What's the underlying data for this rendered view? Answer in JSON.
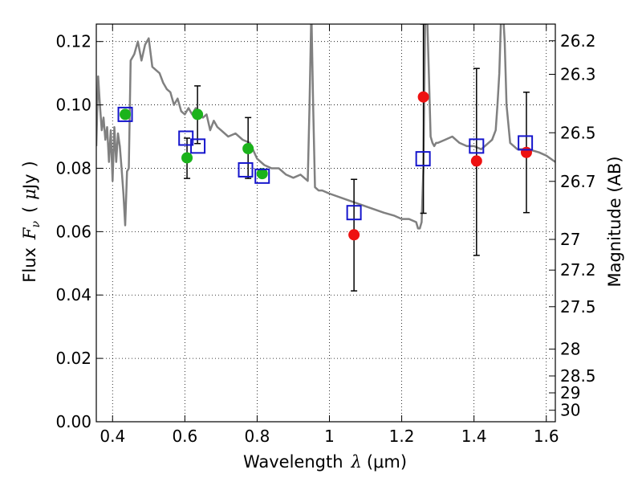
{
  "chart_data": {
    "type": "scatter",
    "title": "",
    "xlabel_parts": {
      "text": "Wavelength",
      "symbol": "λ",
      "unit": "(μm)"
    },
    "ylabel_parts": {
      "text": "Flux",
      "symbol": "F",
      "subscript": "ν",
      "unit_open": "(",
      "unit_mu": "μ",
      "unit": "Jy",
      "unit_close": ")"
    },
    "y2label": "Magnitude (AB)",
    "xlim": [
      0.355,
      1.625
    ],
    "ylim": [
      0.0,
      0.1255
    ],
    "grid": true,
    "x_ticks": [
      0.4,
      0.6,
      0.8,
      1.0,
      1.2,
      1.4,
      1.6
    ],
    "x_tick_labels": [
      "0.4",
      "0.6",
      "0.8",
      "1",
      "1.2",
      "1.4",
      "1.6"
    ],
    "y_ticks": [
      0.0,
      0.02,
      0.04,
      0.06,
      0.08,
      0.1,
      0.12
    ],
    "y_tick_labels": [
      "0.00",
      "0.02",
      "0.04",
      "0.06",
      "0.08",
      "0.10",
      "0.12"
    ],
    "y2_ticks": [
      26.2,
      26.3,
      26.5,
      26.7,
      27,
      27.2,
      27.5,
      28,
      28.5,
      29,
      30
    ],
    "y2_tick_labels": [
      "26.2",
      "26.3",
      "26.5",
      "26.7",
      "27",
      "27.2",
      "27.5",
      "28",
      "28.5",
      "29",
      "30"
    ],
    "colors": {
      "model": "#808080",
      "green": "#1bb31b",
      "red": "#ee1111",
      "squares": "#1515cc",
      "errorbar": "#000000"
    },
    "series": [
      {
        "kind": "line",
        "x": [
          0.355,
          0.36,
          0.365,
          0.37,
          0.375,
          0.38,
          0.385,
          0.39,
          0.395,
          0.4,
          0.405,
          0.41,
          0.415,
          0.42,
          0.425,
          0.43,
          0.435,
          0.44,
          0.445,
          0.45,
          0.46,
          0.47,
          0.48,
          0.49,
          0.5,
          0.51,
          0.52,
          0.53,
          0.54,
          0.55,
          0.56,
          0.57,
          0.58,
          0.59,
          0.6,
          0.61,
          0.62,
          0.63,
          0.64,
          0.65,
          0.66,
          0.67,
          0.68,
          0.69,
          0.7,
          0.72,
          0.74,
          0.76,
          0.78,
          0.8,
          0.82,
          0.84,
          0.86,
          0.88,
          0.9,
          0.92,
          0.94,
          0.945,
          0.95,
          0.955,
          0.96,
          0.97,
          0.98,
          1.0,
          1.05,
          1.1,
          1.15,
          1.18,
          1.2,
          1.22,
          1.24,
          1.245,
          1.25,
          1.255,
          1.26,
          1.265,
          1.27,
          1.275,
          1.28,
          1.285,
          1.29,
          1.295,
          1.3,
          1.32,
          1.34,
          1.36,
          1.38,
          1.4,
          1.42,
          1.44,
          1.45,
          1.46,
          1.465,
          1.47,
          1.475,
          1.48,
          1.485,
          1.49,
          1.5,
          1.52,
          1.55,
          1.58,
          1.6,
          1.625
        ],
        "y": [
          0.087,
          0.109,
          0.1,
          0.092,
          0.096,
          0.089,
          0.093,
          0.082,
          0.092,
          0.076,
          0.093,
          0.082,
          0.091,
          0.087,
          0.08,
          0.072,
          0.062,
          0.079,
          0.08,
          0.114,
          0.116,
          0.12,
          0.114,
          0.119,
          0.121,
          0.112,
          0.111,
          0.11,
          0.107,
          0.105,
          0.104,
          0.1,
          0.102,
          0.098,
          0.097,
          0.099,
          0.097,
          0.099,
          0.097,
          0.096,
          0.097,
          0.092,
          0.095,
          0.093,
          0.092,
          0.09,
          0.091,
          0.089,
          0.088,
          0.083,
          0.081,
          0.08,
          0.08,
          0.078,
          0.077,
          0.078,
          0.076,
          0.1,
          0.13,
          0.1,
          0.074,
          0.073,
          0.073,
          0.072,
          0.07,
          0.068,
          0.066,
          0.065,
          0.064,
          0.064,
          0.063,
          0.061,
          0.061,
          0.063,
          0.08,
          0.13,
          0.13,
          0.11,
          0.09,
          0.088,
          0.087,
          0.088,
          0.088,
          0.089,
          0.09,
          0.088,
          0.087,
          0.087,
          0.086,
          0.088,
          0.089,
          0.092,
          0.1,
          0.11,
          0.128,
          0.13,
          0.12,
          0.1,
          0.088,
          0.086,
          0.086,
          0.085,
          0.084,
          0.082
        ]
      },
      {
        "kind": "points",
        "marker": "circle",
        "color": "green",
        "points": [
          {
            "x": 0.435,
            "y": 0.097
          },
          {
            "x": 0.606,
            "y": 0.0833,
            "err_lo": 0.0768,
            "err_hi": 0.0895
          },
          {
            "x": 0.635,
            "y": 0.097,
            "err_lo": 0.0878,
            "err_hi": 0.106
          },
          {
            "x": 0.775,
            "y": 0.0862,
            "err_lo": 0.0768,
            "err_hi": 0.096
          },
          {
            "x": 0.814,
            "y": 0.0783
          }
        ]
      },
      {
        "kind": "points",
        "marker": "circle",
        "color": "red",
        "points": [
          {
            "x": 1.068,
            "y": 0.059,
            "err_lo": 0.0413,
            "err_hi": 0.0765
          },
          {
            "x": 1.26,
            "y": 0.1025,
            "err_lo": 0.0658,
            "err_hi": 0.1255
          },
          {
            "x": 1.407,
            "y": 0.0823,
            "err_lo": 0.0525,
            "err_hi": 0.1115
          },
          {
            "x": 1.545,
            "y": 0.085,
            "err_lo": 0.066,
            "err_hi": 0.104
          }
        ]
      },
      {
        "kind": "points",
        "marker": "square",
        "color": "squares",
        "points": [
          {
            "x": 0.435,
            "y": 0.097
          },
          {
            "x": 0.603,
            "y": 0.0895
          },
          {
            "x": 0.636,
            "y": 0.087
          },
          {
            "x": 0.768,
            "y": 0.0795
          },
          {
            "x": 0.814,
            "y": 0.0775
          },
          {
            "x": 1.068,
            "y": 0.066
          },
          {
            "x": 1.259,
            "y": 0.083
          },
          {
            "x": 1.407,
            "y": 0.087
          },
          {
            "x": 1.542,
            "y": 0.088
          }
        ]
      }
    ]
  }
}
